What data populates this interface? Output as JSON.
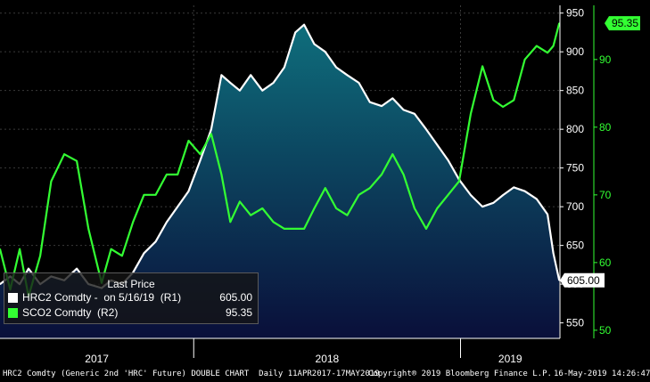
{
  "chart_data": {
    "type": "line",
    "title": "",
    "x_axis": {
      "range": [
        "2017-04-11",
        "2019-05-17"
      ],
      "year_labels": [
        "2017",
        "2018",
        "2019"
      ]
    },
    "y_axis_left": {
      "range": [
        530,
        960
      ],
      "ticks": [
        "950",
        "900",
        "850",
        "800",
        "750",
        "700",
        "650",
        "600",
        "550"
      ]
    },
    "y_axis_right": {
      "range": [
        48.8,
        98.0
      ],
      "ticks": [
        "90",
        "80",
        "70",
        "60",
        "50"
      ]
    },
    "series": [
      {
        "name": "HRC2 Comdty",
        "axis": "left",
        "color": "#ffffff",
        "fill": "area",
        "points": [
          [
            "2017-04-11",
            600
          ],
          [
            "2017-04-25",
            610
          ],
          [
            "2017-05-08",
            600
          ],
          [
            "2017-05-20",
            620
          ],
          [
            "2017-06-05",
            600
          ],
          [
            "2017-06-20",
            610
          ],
          [
            "2017-07-08",
            605
          ],
          [
            "2017-07-25",
            620
          ],
          [
            "2017-08-10",
            600
          ],
          [
            "2017-08-28",
            595
          ],
          [
            "2017-09-10",
            605
          ],
          [
            "2017-09-25",
            600
          ],
          [
            "2017-10-10",
            615
          ],
          [
            "2017-10-25",
            640
          ],
          [
            "2017-11-10",
            655
          ],
          [
            "2017-11-25",
            680
          ],
          [
            "2017-12-10",
            700
          ],
          [
            "2017-12-25",
            720
          ],
          [
            "2018-01-10",
            760
          ],
          [
            "2018-01-25",
            800
          ],
          [
            "2018-02-08",
            870
          ],
          [
            "2018-02-20",
            860
          ],
          [
            "2018-03-05",
            850
          ],
          [
            "2018-03-20",
            870
          ],
          [
            "2018-04-05",
            850
          ],
          [
            "2018-04-20",
            860
          ],
          [
            "2018-05-05",
            880
          ],
          [
            "2018-05-20",
            925
          ],
          [
            "2018-06-01",
            935
          ],
          [
            "2018-06-15",
            910
          ],
          [
            "2018-06-30",
            900
          ],
          [
            "2018-07-15",
            880
          ],
          [
            "2018-07-30",
            870
          ],
          [
            "2018-08-15",
            860
          ],
          [
            "2018-08-30",
            835
          ],
          [
            "2018-09-15",
            830
          ],
          [
            "2018-09-30",
            840
          ],
          [
            "2018-10-15",
            825
          ],
          [
            "2018-10-30",
            820
          ],
          [
            "2018-11-15",
            800
          ],
          [
            "2018-11-30",
            780
          ],
          [
            "2018-12-15",
            760
          ],
          [
            "2018-12-30",
            735
          ],
          [
            "2019-01-15",
            715
          ],
          [
            "2019-01-31",
            700
          ],
          [
            "2019-02-15",
            705
          ],
          [
            "2019-02-28",
            715
          ],
          [
            "2019-03-15",
            725
          ],
          [
            "2019-03-30",
            720
          ],
          [
            "2019-04-15",
            710
          ],
          [
            "2019-04-30",
            690
          ],
          [
            "2019-05-08",
            640
          ],
          [
            "2019-05-16",
            605
          ]
        ]
      },
      {
        "name": "SCO2 Comdty",
        "axis": "right",
        "color": "#33ff33",
        "points": [
          [
            "2017-04-11",
            62
          ],
          [
            "2017-04-25",
            56
          ],
          [
            "2017-05-08",
            62
          ],
          [
            "2017-05-20",
            55
          ],
          [
            "2017-06-05",
            61
          ],
          [
            "2017-06-20",
            72
          ],
          [
            "2017-07-08",
            76
          ],
          [
            "2017-07-25",
            75
          ],
          [
            "2017-08-10",
            65
          ],
          [
            "2017-08-28",
            57
          ],
          [
            "2017-09-10",
            62
          ],
          [
            "2017-09-25",
            61
          ],
          [
            "2017-10-10",
            66
          ],
          [
            "2017-10-25",
            70
          ],
          [
            "2017-11-10",
            70
          ],
          [
            "2017-11-25",
            73
          ],
          [
            "2017-12-10",
            73
          ],
          [
            "2017-12-25",
            78
          ],
          [
            "2018-01-10",
            76
          ],
          [
            "2018-01-25",
            79
          ],
          [
            "2018-02-08",
            73
          ],
          [
            "2018-02-20",
            66
          ],
          [
            "2018-03-05",
            69
          ],
          [
            "2018-03-20",
            67
          ],
          [
            "2018-04-05",
            68
          ],
          [
            "2018-04-20",
            66
          ],
          [
            "2018-05-05",
            65
          ],
          [
            "2018-05-20",
            65
          ],
          [
            "2018-06-01",
            65
          ],
          [
            "2018-06-15",
            68
          ],
          [
            "2018-06-30",
            71
          ],
          [
            "2018-07-15",
            68
          ],
          [
            "2018-07-30",
            67
          ],
          [
            "2018-08-15",
            70
          ],
          [
            "2018-08-30",
            71
          ],
          [
            "2018-09-15",
            73
          ],
          [
            "2018-09-30",
            76
          ],
          [
            "2018-10-15",
            73
          ],
          [
            "2018-10-30",
            68
          ],
          [
            "2018-11-15",
            65
          ],
          [
            "2018-11-30",
            68
          ],
          [
            "2018-12-15",
            70
          ],
          [
            "2018-12-30",
            72
          ],
          [
            "2019-01-15",
            82
          ],
          [
            "2019-01-31",
            89
          ],
          [
            "2019-02-15",
            84
          ],
          [
            "2019-02-28",
            83
          ],
          [
            "2019-03-15",
            84
          ],
          [
            "2019-03-30",
            90
          ],
          [
            "2019-04-15",
            92
          ],
          [
            "2019-04-30",
            91
          ],
          [
            "2019-05-08",
            92
          ],
          [
            "2019-05-16",
            95.35
          ]
        ]
      }
    ],
    "last_value_labels": [
      {
        "series": "SCO2 Comdty",
        "value": "95.35",
        "color": "#33ff33",
        "text_color": "#000000"
      },
      {
        "series": "HRC2 Comdty",
        "value": "605.00",
        "color": "#ffffff",
        "text_color": "#000000"
      }
    ],
    "grid": true,
    "legend_position": "bottom-left",
    "fill_gradient": [
      "#0e6e7c",
      "#0a0f3a"
    ]
  },
  "legend": {
    "title": "Last Price",
    "rows": [
      {
        "name": "HRC2 Comdty -  on 5/16/19  (R1)",
        "value": "605.00",
        "color": "#ffffff"
      },
      {
        "name": "SCO2 Comdty  (R2)",
        "value": "95.35",
        "color": "#33ff33"
      }
    ]
  },
  "footer": {
    "description": "HRC2 Comdty (Generic 2nd 'HRC' Future) DOUBLE CHART  Daily 11APR2017-17MAY2019",
    "copyright": "Copyright® 2019 Bloomberg Finance L.P.",
    "timestamp": "16-May-2019 14:26:47"
  }
}
